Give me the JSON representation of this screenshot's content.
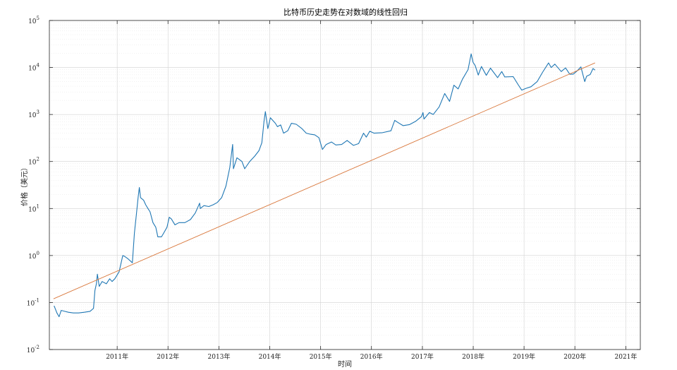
{
  "chart_data": {
    "type": "line",
    "title": "比特币历史走势在对数域的线性回归",
    "xlabel": "时间",
    "ylabel": "价格（美元）",
    "yscale": "log",
    "ylim": [
      0.01,
      100000
    ],
    "xlim": [
      "2009-09-01",
      "2021-04-15"
    ],
    "grid": true,
    "y_ticks": [
      {
        "value": 0.01,
        "base": "10",
        "exp": "-2"
      },
      {
        "value": 0.1,
        "base": "10",
        "exp": "-1"
      },
      {
        "value": 1,
        "base": "10",
        "exp": "0"
      },
      {
        "value": 10,
        "base": "10",
        "exp": "1"
      },
      {
        "value": 100,
        "base": "10",
        "exp": "2"
      },
      {
        "value": 1000,
        "base": "10",
        "exp": "3"
      },
      {
        "value": 10000,
        "base": "10",
        "exp": "4"
      },
      {
        "value": 100000,
        "base": "10",
        "exp": "5"
      }
    ],
    "x_ticks": [
      {
        "date": "2011-01-01",
        "label": "2011年"
      },
      {
        "date": "2012-01-01",
        "label": "2012年"
      },
      {
        "date": "2013-01-01",
        "label": "2013年"
      },
      {
        "date": "2014-01-01",
        "label": "2014年"
      },
      {
        "date": "2015-01-01",
        "label": "2015年"
      },
      {
        "date": "2016-01-01",
        "label": "2016年"
      },
      {
        "date": "2017-01-01",
        "label": "2017年"
      },
      {
        "date": "2018-01-01",
        "label": "2018年"
      },
      {
        "date": "2019-01-01",
        "label": "2019年"
      },
      {
        "date": "2020-01-01",
        "label": "2020年"
      },
      {
        "date": "2021-01-01",
        "label": "2021年"
      }
    ],
    "series": [
      {
        "color": "#1f77b4",
        "points": [
          [
            "2009-10-05",
            0.085
          ],
          [
            "2009-10-25",
            0.06
          ],
          [
            "2009-11-10",
            0.05
          ],
          [
            "2009-11-25",
            0.068
          ],
          [
            "2009-12-20",
            0.065
          ],
          [
            "2010-01-15",
            0.062
          ],
          [
            "2010-02-20",
            0.06
          ],
          [
            "2010-03-30",
            0.06
          ],
          [
            "2010-05-10",
            0.062
          ],
          [
            "2010-06-20",
            0.065
          ],
          [
            "2010-07-15",
            0.075
          ],
          [
            "2010-07-25",
            0.18
          ],
          [
            "2010-08-05",
            0.25
          ],
          [
            "2010-08-12",
            0.4
          ],
          [
            "2010-08-25",
            0.22
          ],
          [
            "2010-09-15",
            0.28
          ],
          [
            "2010-10-15",
            0.25
          ],
          [
            "2010-11-08",
            0.32
          ],
          [
            "2010-11-25",
            0.28
          ],
          [
            "2010-12-15",
            0.32
          ],
          [
            "2011-01-15",
            0.45
          ],
          [
            "2011-02-10",
            1.0
          ],
          [
            "2011-02-25",
            0.95
          ],
          [
            "2011-03-20",
            0.85
          ],
          [
            "2011-04-20",
            0.7
          ],
          [
            "2011-05-05",
            3.0
          ],
          [
            "2011-05-20",
            8.0
          ],
          [
            "2011-06-01",
            18.0
          ],
          [
            "2011-06-09",
            28.0
          ],
          [
            "2011-06-18",
            17.0
          ],
          [
            "2011-07-10",
            15.0
          ],
          [
            "2011-07-25",
            12.0
          ],
          [
            "2011-08-10",
            10.0
          ],
          [
            "2011-08-25",
            8.5
          ],
          [
            "2011-09-15",
            5.0
          ],
          [
            "2011-10-05",
            4.0
          ],
          [
            "2011-10-20",
            2.5
          ],
          [
            "2011-11-15",
            2.5
          ],
          [
            "2011-12-01",
            3.0
          ],
          [
            "2011-12-25",
            4.0
          ],
          [
            "2012-01-10",
            6.5
          ],
          [
            "2012-01-25",
            6.0
          ],
          [
            "2012-02-20",
            4.5
          ],
          [
            "2012-03-20",
            5.0
          ],
          [
            "2012-05-01",
            5.0
          ],
          [
            "2012-06-10",
            5.8
          ],
          [
            "2012-07-15",
            8.0
          ],
          [
            "2012-08-15",
            13.0
          ],
          [
            "2012-08-20",
            10.0
          ],
          [
            "2012-09-15",
            11.5
          ],
          [
            "2012-10-20",
            11.0
          ],
          [
            "2012-11-20",
            12.0
          ],
          [
            "2012-12-20",
            13.4
          ],
          [
            "2013-01-20",
            17.0
          ],
          [
            "2013-02-20",
            30.0
          ],
          [
            "2013-03-20",
            75.0
          ],
          [
            "2013-04-09",
            230.0
          ],
          [
            "2013-04-15",
            70.0
          ],
          [
            "2013-05-10",
            120.0
          ],
          [
            "2013-06-15",
            100.0
          ],
          [
            "2013-07-05",
            70.0
          ],
          [
            "2013-08-10",
            100.0
          ],
          [
            "2013-09-15",
            130.0
          ],
          [
            "2013-10-15",
            170.0
          ],
          [
            "2013-11-05",
            250.0
          ],
          [
            "2013-11-20",
            700.0
          ],
          [
            "2013-11-30",
            1150.0
          ],
          [
            "2013-12-18",
            500.0
          ],
          [
            "2014-01-05",
            850.0
          ],
          [
            "2014-02-10",
            650.0
          ],
          [
            "2014-02-25",
            550.0
          ],
          [
            "2014-03-20",
            600.0
          ],
          [
            "2014-04-10",
            400.0
          ],
          [
            "2014-05-10",
            450.0
          ],
          [
            "2014-06-05",
            650.0
          ],
          [
            "2014-07-10",
            620.0
          ],
          [
            "2014-08-20",
            500.0
          ],
          [
            "2014-09-20",
            400.0
          ],
          [
            "2014-10-20",
            380.0
          ],
          [
            "2014-11-20",
            370.0
          ],
          [
            "2014-12-20",
            320.0
          ],
          [
            "2015-01-14",
            180.0
          ],
          [
            "2015-02-10",
            230.0
          ],
          [
            "2015-03-20",
            260.0
          ],
          [
            "2015-04-20",
            225.0
          ],
          [
            "2015-06-01",
            230.0
          ],
          [
            "2015-07-10",
            280.0
          ],
          [
            "2015-08-25",
            220.0
          ],
          [
            "2015-10-01",
            240.0
          ],
          [
            "2015-11-05",
            400.0
          ],
          [
            "2015-11-25",
            330.0
          ],
          [
            "2015-12-20",
            440.0
          ],
          [
            "2016-01-20",
            400.0
          ],
          [
            "2016-03-20",
            410.0
          ],
          [
            "2016-05-20",
            450.0
          ],
          [
            "2016-06-16",
            750.0
          ],
          [
            "2016-07-15",
            660.0
          ],
          [
            "2016-08-15",
            580.0
          ],
          [
            "2016-10-01",
            610.0
          ],
          [
            "2016-11-15",
            720.0
          ],
          [
            "2016-12-25",
            900.0
          ],
          [
            "2017-01-05",
            1100.0
          ],
          [
            "2017-01-12",
            800.0
          ],
          [
            "2017-02-20",
            1100.0
          ],
          [
            "2017-03-20",
            1000.0
          ],
          [
            "2017-05-01",
            1450.0
          ],
          [
            "2017-06-10",
            2800.0
          ],
          [
            "2017-07-15",
            1900.0
          ],
          [
            "2017-08-15",
            4200.0
          ],
          [
            "2017-09-15",
            3500.0
          ],
          [
            "2017-10-15",
            5600.0
          ],
          [
            "2017-11-25",
            9000.0
          ],
          [
            "2017-12-17",
            19500.0
          ],
          [
            "2017-12-30",
            13000.0
          ],
          [
            "2018-01-15",
            11000.0
          ],
          [
            "2018-02-06",
            6900.0
          ],
          [
            "2018-03-01",
            10500.0
          ],
          [
            "2018-04-05",
            6800.0
          ],
          [
            "2018-05-05",
            9700.0
          ],
          [
            "2018-06-25",
            6100.0
          ],
          [
            "2018-07-25",
            8200.0
          ],
          [
            "2018-08-15",
            6300.0
          ],
          [
            "2018-10-15",
            6400.0
          ],
          [
            "2018-11-20",
            4300.0
          ],
          [
            "2018-12-15",
            3300.0
          ],
          [
            "2019-01-15",
            3600.0
          ],
          [
            "2019-02-20",
            3900.0
          ],
          [
            "2019-04-05",
            5000.0
          ],
          [
            "2019-05-15",
            8000.0
          ],
          [
            "2019-06-26",
            12500.0
          ],
          [
            "2019-07-15",
            10000.0
          ],
          [
            "2019-08-10",
            11800.0
          ],
          [
            "2019-09-25",
            8200.0
          ],
          [
            "2019-10-26",
            9800.0
          ],
          [
            "2019-11-25",
            7200.0
          ],
          [
            "2019-12-20",
            7200.0
          ],
          [
            "2020-01-20",
            8600.0
          ],
          [
            "2020-02-13",
            10300.0
          ],
          [
            "2020-03-12",
            5000.0
          ],
          [
            "2020-03-25",
            6500.0
          ],
          [
            "2020-04-20",
            7100.0
          ],
          [
            "2020-05-10",
            9500.0
          ],
          [
            "2020-05-25",
            8800.0
          ]
        ]
      },
      {
        "color": "#d9773b",
        "points": [
          [
            "2009-10-01",
            0.12
          ],
          [
            "2020-05-25",
            12500.0
          ]
        ]
      }
    ]
  }
}
